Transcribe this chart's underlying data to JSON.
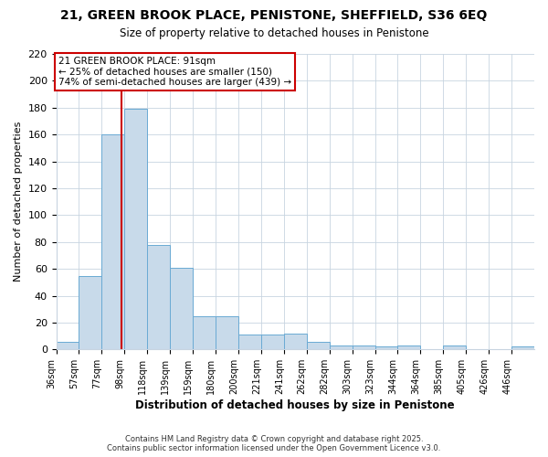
{
  "title_line1": "21, GREEN BROOK PLACE, PENISTONE, SHEFFIELD, S36 6EQ",
  "title_line2": "Size of property relative to detached houses in Penistone",
  "xlabel": "Distribution of detached houses by size in Penistone",
  "ylabel": "Number of detached properties",
  "bar_values": [
    6,
    55,
    160,
    179,
    78,
    61,
    25,
    25,
    11,
    11,
    12,
    6,
    3,
    3,
    2,
    3,
    0,
    3,
    0,
    0,
    2
  ],
  "bin_labels": [
    "36sqm",
    "57sqm",
    "77sqm",
    "98sqm",
    "118sqm",
    "139sqm",
    "159sqm",
    "180sqm",
    "200sqm",
    "221sqm",
    "241sqm",
    "262sqm",
    "282sqm",
    "303sqm",
    "323sqm",
    "344sqm",
    "364sqm",
    "385sqm",
    "405sqm",
    "426sqm",
    "446sqm"
  ],
  "bar_color": "#c8daea",
  "bar_edge_color": "#6aaad4",
  "grid_color": "#c8d4e0",
  "property_line_x": 2,
  "annotation_text": "21 GREEN BROOK PLACE: 91sqm\n← 25% of detached houses are smaller (150)\n74% of semi-detached houses are larger (439) →",
  "annotation_box_color": "#cc0000",
  "vline_color": "#cc0000",
  "footnote": "Contains HM Land Registry data © Crown copyright and database right 2025.\nContains public sector information licensed under the Open Government Licence v3.0.",
  "ylim": [
    0,
    220
  ],
  "yticks": [
    0,
    20,
    40,
    60,
    80,
    100,
    120,
    140,
    160,
    180,
    200,
    220
  ],
  "background_color": "#ffffff",
  "vline_bar_index": 2.85
}
